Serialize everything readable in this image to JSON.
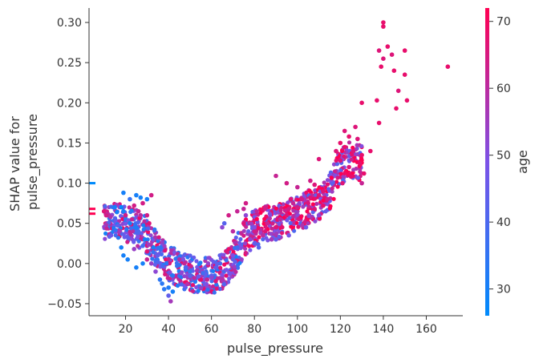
{
  "chart_data": {
    "type": "scatter",
    "title": "",
    "xlabel": "pulse_pressure",
    "ylabel_lines": [
      "SHAP value for",
      "pulse_pressure"
    ],
    "xlim": [
      3,
      177
    ],
    "ylim": [
      -0.065,
      0.318
    ],
    "xticks": [
      20,
      40,
      60,
      80,
      100,
      120,
      140,
      160
    ],
    "xtick_labels": [
      "20",
      "40",
      "60",
      "80",
      "100",
      "120",
      "140",
      "160"
    ],
    "yticks": [
      -0.05,
      0.0,
      0.05,
      0.1,
      0.15,
      0.2,
      0.25,
      0.3
    ],
    "ytick_labels": [
      "−0.05",
      "0.00",
      "0.05",
      "0.10",
      "0.15",
      "0.20",
      "0.25",
      "0.30"
    ],
    "grid": false,
    "colorbar": {
      "label": "age",
      "range": [
        26,
        72
      ],
      "ticks": [
        30,
        40,
        50,
        60,
        70
      ],
      "tick_labels": [
        "30",
        "40",
        "50",
        "60",
        "70"
      ],
      "colormap": [
        "#008afb",
        "#7c52e7",
        "#ff0052"
      ]
    },
    "trend": [
      [
        10,
        0.052
      ],
      [
        15,
        0.055
      ],
      [
        20,
        0.05
      ],
      [
        25,
        0.045
      ],
      [
        30,
        0.035
      ],
      [
        35,
        0.015
      ],
      [
        40,
        0.002
      ],
      [
        45,
        -0.008
      ],
      [
        50,
        -0.012
      ],
      [
        55,
        -0.015
      ],
      [
        60,
        -0.015
      ],
      [
        65,
        -0.01
      ],
      [
        70,
        0.005
      ],
      [
        75,
        0.03
      ],
      [
        80,
        0.045
      ],
      [
        90,
        0.052
      ],
      [
        100,
        0.062
      ],
      [
        110,
        0.075
      ],
      [
        115,
        0.09
      ],
      [
        120,
        0.12
      ],
      [
        125,
        0.13
      ],
      [
        130,
        0.125
      ]
    ],
    "points": [
      [
        140,
        0.3,
        68
      ],
      [
        140,
        0.295,
        68
      ],
      [
        142,
        0.27,
        68
      ],
      [
        138,
        0.265,
        66
      ],
      [
        144,
        0.26,
        66
      ],
      [
        150,
        0.265,
        68
      ],
      [
        140,
        0.255,
        66
      ],
      [
        139,
        0.245,
        68
      ],
      [
        170,
        0.245,
        68
      ],
      [
        145,
        0.24,
        68
      ],
      [
        150,
        0.235,
        68
      ],
      [
        147,
        0.215,
        66
      ],
      [
        137,
        0.203,
        68
      ],
      [
        151,
        0.203,
        68
      ],
      [
        146,
        0.193,
        68
      ],
      [
        130,
        0.2,
        68
      ],
      [
        127,
        0.17,
        66
      ],
      [
        138,
        0.175,
        68
      ],
      [
        122,
        0.165,
        66
      ],
      [
        124,
        0.158,
        68
      ],
      [
        128,
        0.155,
        66
      ],
      [
        120,
        0.15,
        68
      ],
      [
        126,
        0.14,
        66
      ],
      [
        122,
        0.145,
        68
      ],
      [
        118,
        0.14,
        66
      ],
      [
        130,
        0.135,
        68
      ],
      [
        120,
        0.128,
        66
      ],
      [
        129,
        0.125,
        68
      ],
      [
        124,
        0.12,
        66
      ],
      [
        131,
        0.112,
        68
      ],
      [
        134,
        0.14,
        68
      ],
      [
        110,
        0.13,
        66
      ],
      [
        121,
        0.1,
        66
      ],
      [
        130,
        0.1,
        62
      ],
      [
        125,
        0.108,
        68
      ],
      [
        106,
        0.103,
        64
      ],
      [
        108,
        0.098,
        66
      ],
      [
        90,
        0.109,
        62
      ],
      [
        95,
        0.1,
        64
      ],
      [
        97,
        0.08,
        66
      ],
      [
        100,
        0.095,
        62
      ],
      [
        85,
        0.07,
        64
      ],
      [
        75,
        0.068,
        62
      ],
      [
        76,
        0.06,
        52
      ],
      [
        66,
        0.05,
        42
      ],
      [
        65,
        0.045,
        52
      ],
      [
        72,
        0.02,
        38
      ],
      [
        78,
        0.03,
        52
      ],
      [
        80,
        0.025,
        44
      ],
      [
        84,
        0.035,
        60
      ],
      [
        88,
        0.03,
        56
      ],
      [
        74,
        0.005,
        54
      ],
      [
        70,
        0.01,
        50
      ],
      [
        71,
        0.002,
        44
      ],
      [
        64,
        0.0,
        40
      ],
      [
        62,
        -0.005,
        44
      ],
      [
        60,
        -0.015,
        44
      ],
      [
        56,
        -0.012,
        38
      ],
      [
        50,
        -0.01,
        36
      ],
      [
        48,
        -0.008,
        34
      ],
      [
        46,
        -0.012,
        52
      ],
      [
        52,
        -0.018,
        60
      ],
      [
        58,
        -0.02,
        62
      ],
      [
        62,
        -0.022,
        66
      ],
      [
        55,
        -0.02,
        68
      ],
      [
        42,
        -0.015,
        34
      ],
      [
        40,
        -0.03,
        32
      ],
      [
        38,
        -0.032,
        34
      ],
      [
        40,
        -0.04,
        44
      ],
      [
        41,
        -0.047,
        56
      ],
      [
        42,
        -0.035,
        30
      ],
      [
        37,
        -0.025,
        34
      ],
      [
        36,
        -0.02,
        34
      ],
      [
        34,
        -0.01,
        52
      ],
      [
        32,
        0.0,
        54
      ],
      [
        35,
        0.01,
        44
      ],
      [
        30,
        0.015,
        66
      ],
      [
        28,
        0.022,
        38
      ],
      [
        26,
        0.04,
        40
      ],
      [
        25,
        0.045,
        32
      ],
      [
        22,
        0.05,
        30
      ],
      [
        20,
        0.06,
        30
      ],
      [
        19,
        0.065,
        30
      ],
      [
        18,
        0.07,
        28
      ],
      [
        19,
        0.088,
        30
      ],
      [
        22,
        0.08,
        36
      ],
      [
        25,
        0.085,
        30
      ],
      [
        27,
        0.082,
        30
      ],
      [
        30,
        0.08,
        30
      ],
      [
        32,
        0.085,
        64
      ],
      [
        24,
        0.072,
        64
      ],
      [
        28,
        0.075,
        64
      ],
      [
        20,
        0.06,
        64
      ],
      [
        15,
        0.07,
        30
      ],
      [
        16,
        0.064,
        30
      ],
      [
        12,
        0.06,
        60
      ],
      [
        13,
        0.058,
        58
      ],
      [
        10,
        0.065,
        66
      ],
      [
        11,
        0.06,
        64
      ],
      [
        18,
        0.02,
        30
      ],
      [
        19,
        0.01,
        30
      ],
      [
        21,
        0.005,
        30
      ],
      [
        25,
        -0.005,
        30
      ],
      [
        28,
        0.0,
        30
      ],
      [
        30,
        0.005,
        62
      ],
      [
        24,
        0.018,
        54
      ],
      [
        85,
        0.04,
        66
      ],
      [
        90,
        0.045,
        66
      ],
      [
        95,
        0.06,
        66
      ],
      [
        105,
        0.075,
        66
      ],
      [
        110,
        0.085,
        66
      ],
      [
        112,
        0.09,
        66
      ],
      [
        100,
        0.07,
        64
      ],
      [
        92,
        0.055,
        60
      ],
      [
        86,
        0.05,
        62
      ],
      [
        80,
        0.04,
        64
      ],
      [
        70,
        0.04,
        60
      ],
      [
        75,
        0.05,
        66
      ],
      [
        68,
        0.06,
        64
      ],
      [
        72,
        0.065,
        62
      ],
      [
        76,
        0.075,
        64
      ],
      [
        80,
        0.045,
        50
      ],
      [
        82,
        0.02,
        42
      ],
      [
        90,
        0.03,
        44
      ],
      [
        96,
        0.035,
        48
      ],
      [
        104,
        0.045,
        46
      ],
      [
        110,
        0.06,
        52
      ],
      [
        108,
        0.068,
        66
      ],
      [
        112,
        0.072,
        68
      ],
      [
        114,
        0.08,
        64
      ],
      [
        96,
        0.068,
        64
      ],
      [
        98,
        0.075,
        62
      ],
      [
        102,
        0.08,
        64
      ],
      [
        106,
        0.082,
        66
      ],
      [
        60,
        -0.018,
        52
      ],
      [
        65,
        -0.014,
        50
      ],
      [
        67,
        -0.008,
        48
      ],
      [
        54,
        -0.016,
        46
      ],
      [
        48,
        -0.005,
        40
      ],
      [
        44,
        -0.003,
        36
      ],
      [
        39,
        0.0,
        34
      ],
      [
        33,
        0.02,
        30
      ],
      [
        29,
        0.03,
        30
      ],
      [
        27,
        0.06,
        60
      ],
      [
        23,
        0.055,
        62
      ],
      [
        26,
        0.065,
        62
      ],
      [
        30,
        0.06,
        64
      ],
      [
        31,
        0.05,
        66
      ]
    ]
  }
}
